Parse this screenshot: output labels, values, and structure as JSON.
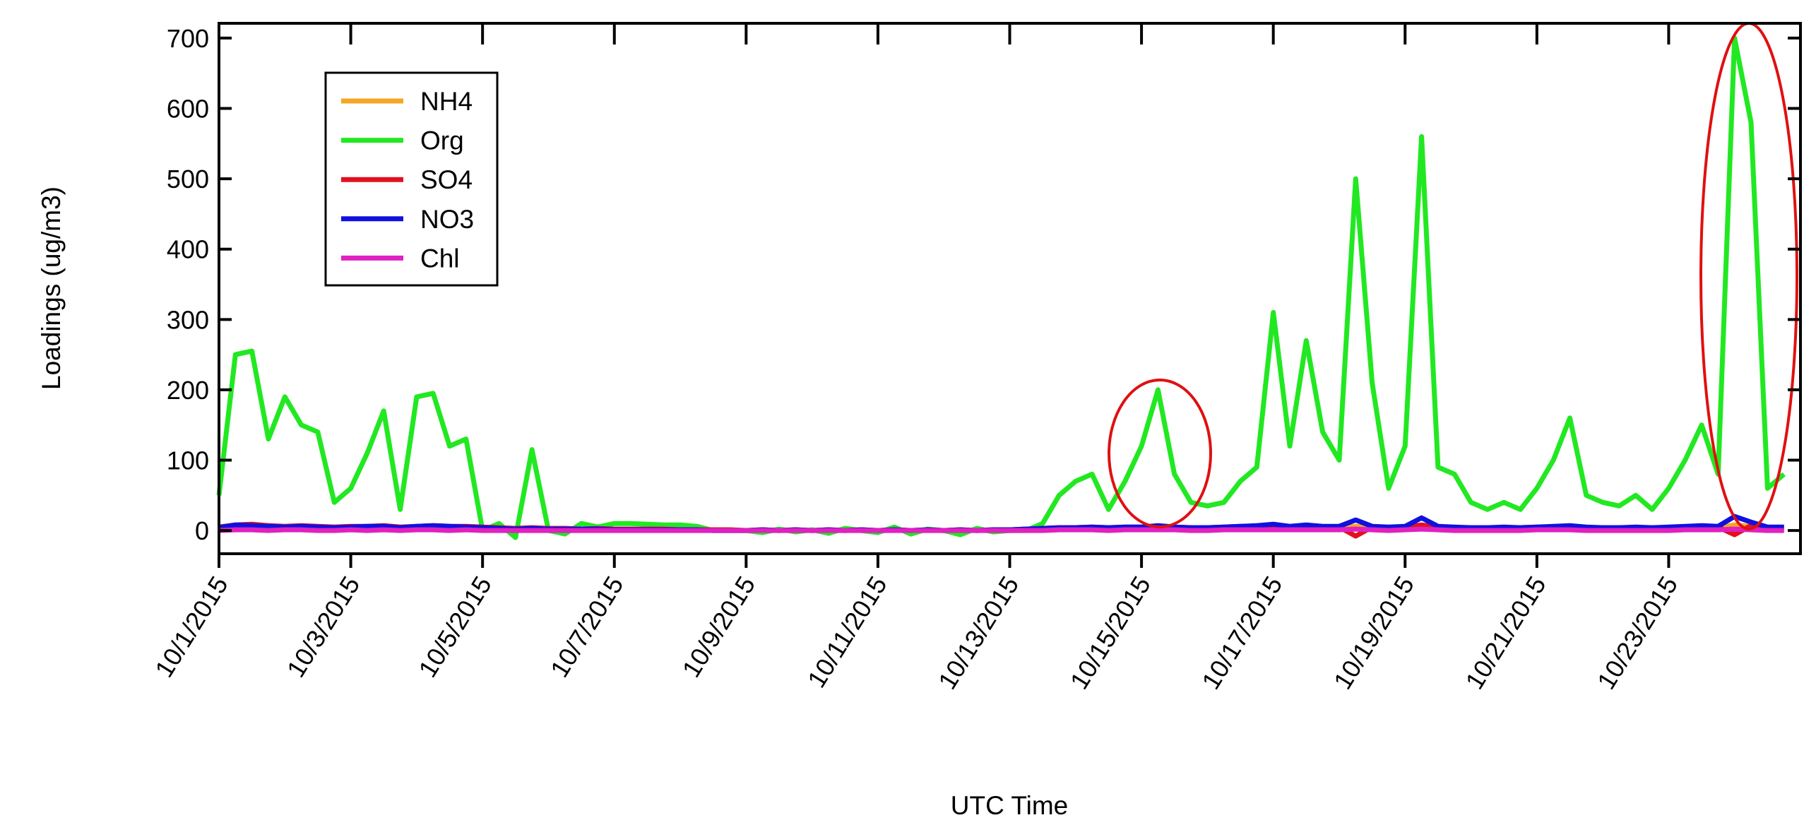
{
  "chart_data": {
    "type": "line",
    "y_label": "Loadings (ug/m3)",
    "x_label": "UTC Time",
    "x": [
      "2015-10-01T00:00",
      "2015-10-01T06:00",
      "2015-10-01T12:00",
      "2015-10-01T18:00",
      "2015-10-02T00:00",
      "2015-10-02T06:00",
      "2015-10-02T12:00",
      "2015-10-02T18:00",
      "2015-10-03T00:00",
      "2015-10-03T06:00",
      "2015-10-03T12:00",
      "2015-10-03T18:00",
      "2015-10-04T00:00",
      "2015-10-04T06:00",
      "2015-10-04T12:00",
      "2015-10-04T18:00",
      "2015-10-05T00:00",
      "2015-10-05T06:00",
      "2015-10-05T12:00",
      "2015-10-05T18:00",
      "2015-10-06T00:00",
      "2015-10-06T06:00",
      "2015-10-06T12:00",
      "2015-10-06T18:00",
      "2015-10-07T00:00",
      "2015-10-07T06:00",
      "2015-10-07T12:00",
      "2015-10-07T18:00",
      "2015-10-08T00:00",
      "2015-10-08T06:00",
      "2015-10-08T12:00",
      "2015-10-08T18:00",
      "2015-10-09T00:00",
      "2015-10-09T06:00",
      "2015-10-09T12:00",
      "2015-10-09T18:00",
      "2015-10-10T00:00",
      "2015-10-10T06:00",
      "2015-10-10T12:00",
      "2015-10-10T18:00",
      "2015-10-11T00:00",
      "2015-10-11T06:00",
      "2015-10-11T12:00",
      "2015-10-11T18:00",
      "2015-10-12T00:00",
      "2015-10-12T06:00",
      "2015-10-12T12:00",
      "2015-10-12T18:00",
      "2015-10-13T00:00",
      "2015-10-13T06:00",
      "2015-10-13T12:00",
      "2015-10-13T18:00",
      "2015-10-14T00:00",
      "2015-10-14T06:00",
      "2015-10-14T12:00",
      "2015-10-14T18:00",
      "2015-10-15T00:00",
      "2015-10-15T06:00",
      "2015-10-15T12:00",
      "2015-10-15T18:00",
      "2015-10-16T00:00",
      "2015-10-16T06:00",
      "2015-10-16T12:00",
      "2015-10-16T18:00",
      "2015-10-17T00:00",
      "2015-10-17T06:00",
      "2015-10-17T12:00",
      "2015-10-17T18:00",
      "2015-10-18T00:00",
      "2015-10-18T06:00",
      "2015-10-18T12:00",
      "2015-10-18T18:00",
      "2015-10-19T00:00",
      "2015-10-19T06:00",
      "2015-10-19T12:00",
      "2015-10-19T18:00",
      "2015-10-20T00:00",
      "2015-10-20T06:00",
      "2015-10-20T12:00",
      "2015-10-20T18:00",
      "2015-10-21T00:00",
      "2015-10-21T06:00",
      "2015-10-21T12:00",
      "2015-10-21T18:00",
      "2015-10-22T00:00",
      "2015-10-22T06:00",
      "2015-10-22T12:00",
      "2015-10-22T18:00",
      "2015-10-23T00:00",
      "2015-10-23T06:00",
      "2015-10-23T12:00",
      "2015-10-23T18:00",
      "2015-10-24T00:00",
      "2015-10-24T06:00",
      "2015-10-24T12:00",
      "2015-10-24T18:00"
    ],
    "series": [
      {
        "name": "NH4",
        "color": "#f5a623",
        "values": [
          3,
          4,
          3,
          4,
          3,
          4,
          3,
          3,
          4,
          3,
          4,
          3,
          3,
          4,
          3,
          4,
          3,
          2,
          3,
          3,
          2,
          3,
          2,
          3,
          2,
          2,
          2,
          2,
          1,
          1,
          1,
          1,
          0,
          1,
          0,
          1,
          0,
          1,
          0,
          1,
          0,
          1,
          0,
          1,
          0,
          1,
          0,
          1,
          1,
          2,
          2,
          3,
          3,
          4,
          3,
          4,
          4,
          5,
          4,
          3,
          3,
          4,
          4,
          4,
          5,
          4,
          5,
          4,
          4,
          6,
          4,
          3,
          4,
          7,
          4,
          3,
          3,
          3,
          3,
          3,
          4,
          4,
          5,
          3,
          3,
          3,
          3,
          3,
          3,
          4,
          5,
          4,
          8,
          6,
          3,
          3
        ]
      },
      {
        "name": "Org",
        "color": "#22e822",
        "values": [
          50,
          250,
          255,
          130,
          190,
          150,
          140,
          40,
          60,
          110,
          170,
          30,
          190,
          195,
          120,
          130,
          0,
          10,
          -10,
          115,
          0,
          -5,
          10,
          5,
          10,
          10,
          9,
          8,
          8,
          6,
          0,
          0,
          0,
          -3,
          2,
          -2,
          1,
          -4,
          3,
          0,
          -3,
          5,
          -5,
          2,
          0,
          -6,
          3,
          -2,
          0,
          0,
          10,
          50,
          70,
          80,
          30,
          70,
          120,
          200,
          80,
          40,
          35,
          40,
          70,
          90,
          310,
          120,
          270,
          140,
          100,
          500,
          210,
          60,
          120,
          560,
          90,
          80,
          40,
          30,
          40,
          30,
          60,
          100,
          160,
          50,
          40,
          35,
          50,
          30,
          60,
          100,
          150,
          80,
          700,
          580,
          60,
          80
        ]
      },
      {
        "name": "SO4",
        "color": "#e01020",
        "values": [
          5,
          8,
          9,
          7,
          6,
          7,
          6,
          5,
          6,
          6,
          7,
          5,
          6,
          7,
          6,
          6,
          5,
          4,
          3,
          4,
          3,
          3,
          2,
          3,
          2,
          2,
          2,
          2,
          1,
          1,
          1,
          1,
          0,
          1,
          0,
          1,
          0,
          1,
          0,
          1,
          0,
          1,
          0,
          1,
          0,
          1,
          0,
          1,
          1,
          2,
          3,
          4,
          4,
          5,
          4,
          5,
          5,
          6,
          5,
          4,
          4,
          5,
          6,
          6,
          7,
          5,
          6,
          5,
          5,
          -8,
          5,
          4,
          5,
          8,
          5,
          4,
          4,
          4,
          4,
          4,
          5,
          5,
          6,
          4,
          4,
          4,
          4,
          4,
          4,
          5,
          6,
          5,
          -6,
          7,
          4,
          4
        ]
      },
      {
        "name": "NO3",
        "color": "#1010e0",
        "values": [
          4,
          8,
          7,
          6,
          5,
          6,
          5,
          4,
          5,
          6,
          6,
          4,
          6,
          7,
          6,
          5,
          4,
          3,
          2,
          3,
          2,
          2,
          2,
          2,
          1,
          1,
          1,
          1,
          1,
          1,
          0,
          0,
          0,
          1,
          0,
          1,
          0,
          1,
          0,
          1,
          0,
          1,
          0,
          1,
          0,
          1,
          0,
          1,
          1,
          2,
          3,
          4,
          4,
          5,
          4,
          5,
          5,
          7,
          5,
          4,
          4,
          5,
          6,
          7,
          9,
          6,
          8,
          6,
          6,
          15,
          6,
          5,
          6,
          18,
          6,
          5,
          4,
          4,
          5,
          4,
          5,
          6,
          7,
          5,
          4,
          4,
          5,
          4,
          5,
          6,
          7,
          6,
          20,
          12,
          5,
          5
        ]
      },
      {
        "name": "Chl",
        "color": "#e020c0",
        "values": [
          0,
          1,
          1,
          0,
          1,
          1,
          0,
          0,
          1,
          0,
          1,
          0,
          1,
          1,
          0,
          1,
          0,
          0,
          0,
          0,
          0,
          0,
          0,
          0,
          0,
          0,
          0,
          0,
          0,
          0,
          0,
          0,
          0,
          0,
          0,
          0,
          0,
          0,
          0,
          0,
          0,
          0,
          0,
          0,
          0,
          0,
          0,
          0,
          0,
          0,
          0,
          1,
          1,
          1,
          0,
          1,
          1,
          1,
          1,
          0,
          0,
          1,
          1,
          1,
          1,
          1,
          1,
          1,
          1,
          2,
          1,
          0,
          1,
          2,
          1,
          0,
          0,
          0,
          0,
          0,
          1,
          1,
          1,
          0,
          0,
          0,
          0,
          0,
          0,
          1,
          1,
          1,
          2,
          1,
          0,
          0
        ]
      }
    ],
    "xlim": [
      "2015-10-01T00:00",
      "2015-10-25T00:00"
    ],
    "xticks": [
      {
        "value": "2015-10-01T00:00",
        "label": "10/1/2015"
      },
      {
        "value": "2015-10-03T00:00",
        "label": "10/3/2015"
      },
      {
        "value": "2015-10-05T00:00",
        "label": "10/5/2015"
      },
      {
        "value": "2015-10-07T00:00",
        "label": "10/7/2015"
      },
      {
        "value": "2015-10-09T00:00",
        "label": "10/9/2015"
      },
      {
        "value": "2015-10-11T00:00",
        "label": "10/11/2015"
      },
      {
        "value": "2015-10-13T00:00",
        "label": "10/13/2015"
      },
      {
        "value": "2015-10-15T00:00",
        "label": "10/15/2015"
      },
      {
        "value": "2015-10-17T00:00",
        "label": "10/17/2015"
      },
      {
        "value": "2015-10-19T00:00",
        "label": "10/19/2015"
      },
      {
        "value": "2015-10-21T00:00",
        "label": "10/21/2015"
      },
      {
        "value": "2015-10-23T00:00",
        "label": "10/23/2015"
      }
    ],
    "ylim": [
      -33,
      721
    ],
    "yticks": [
      0,
      100,
      200,
      300,
      400,
      500,
      600,
      700
    ],
    "legend": "upper left"
  }
}
